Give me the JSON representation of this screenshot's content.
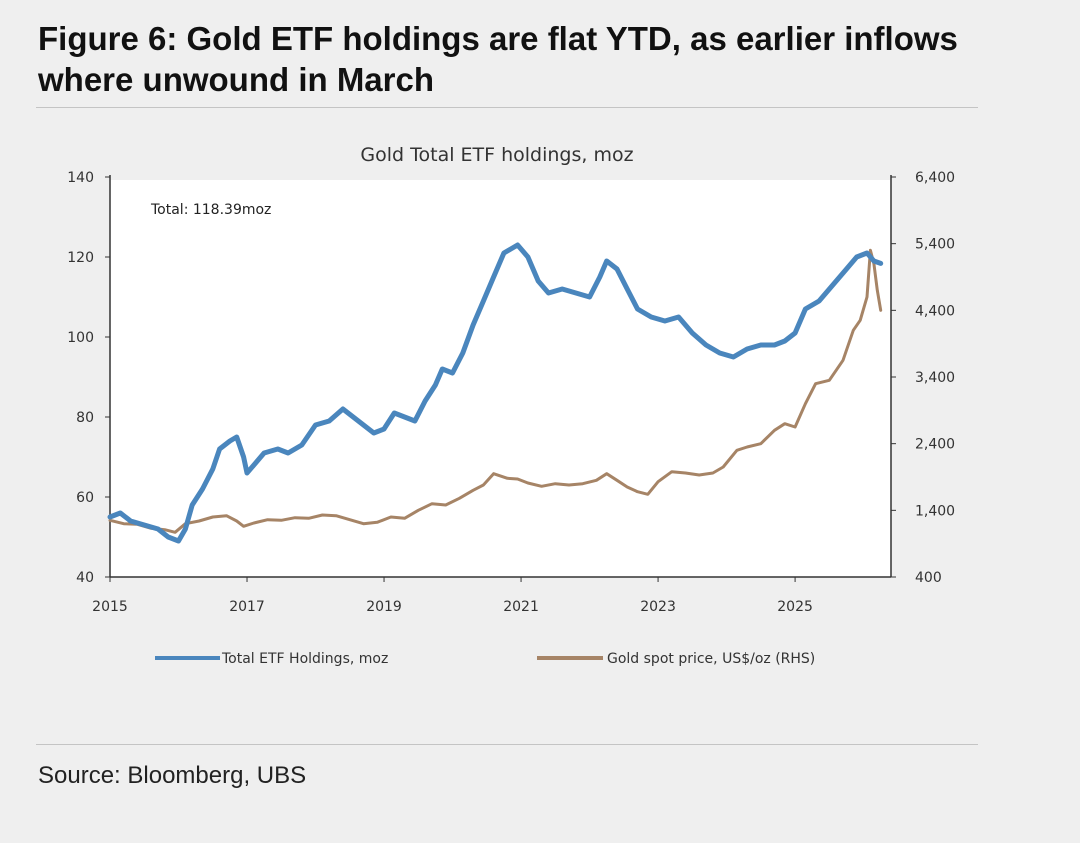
{
  "figure": {
    "title_line1": "Figure 6: Gold ETF holdings are flat YTD, as earlier inflows",
    "title_line2": "where unwound in March",
    "source": "Source: Bloomberg, UBS"
  },
  "colors": {
    "etf": "#4a86bd",
    "gold": "#a68466",
    "axis": "#333333"
  },
  "chart_data": {
    "type": "line",
    "title": "Gold Total ETF holdings, moz",
    "annotation": "Total: 118.39moz",
    "x_ticks": [
      "2015",
      "2017",
      "2019",
      "2021",
      "2023",
      "2025"
    ],
    "x_tick_values": [
      2015,
      2017,
      2019,
      2021,
      2023,
      2025
    ],
    "xlim": [
      2015,
      2026.4
    ],
    "y_left": {
      "ticks": [
        "140",
        "120",
        "100",
        "80",
        "60",
        "40"
      ],
      "tick_values": [
        140,
        120,
        100,
        80,
        60,
        40
      ],
      "lim": [
        40,
        140
      ]
    },
    "y_right": {
      "ticks": [
        "6,400",
        "5,400",
        "4,400",
        "3,400",
        "2,400",
        "1,400",
        "400"
      ],
      "tick_values": [
        6400,
        5400,
        4400,
        3400,
        2400,
        1400,
        400
      ],
      "lim": [
        400,
        6400
      ],
      "label": "RHS"
    },
    "legend_position": "bottom",
    "series": [
      {
        "name": "Total ETF Holdings, moz",
        "axis": "left",
        "points": [
          [
            2015.0,
            55
          ],
          [
            2015.15,
            56
          ],
          [
            2015.3,
            54
          ],
          [
            2015.5,
            53
          ],
          [
            2015.7,
            52
          ],
          [
            2015.85,
            50
          ],
          [
            2016.0,
            49
          ],
          [
            2016.1,
            52
          ],
          [
            2016.2,
            58
          ],
          [
            2016.35,
            62
          ],
          [
            2016.5,
            67
          ],
          [
            2016.6,
            72
          ],
          [
            2016.75,
            74
          ],
          [
            2016.85,
            75
          ],
          [
            2016.95,
            70
          ],
          [
            2017.0,
            66
          ],
          [
            2017.1,
            68
          ],
          [
            2017.25,
            71
          ],
          [
            2017.45,
            72
          ],
          [
            2017.6,
            71
          ],
          [
            2017.8,
            73
          ],
          [
            2018.0,
            78
          ],
          [
            2018.2,
            79
          ],
          [
            2018.4,
            82
          ],
          [
            2018.55,
            80
          ],
          [
            2018.7,
            78
          ],
          [
            2018.85,
            76
          ],
          [
            2019.0,
            77
          ],
          [
            2019.15,
            81
          ],
          [
            2019.3,
            80
          ],
          [
            2019.45,
            79
          ],
          [
            2019.6,
            84
          ],
          [
            2019.75,
            88
          ],
          [
            2019.85,
            92
          ],
          [
            2020.0,
            91
          ],
          [
            2020.15,
            96
          ],
          [
            2020.3,
            103
          ],
          [
            2020.45,
            109
          ],
          [
            2020.6,
            115
          ],
          [
            2020.75,
            121
          ],
          [
            2020.85,
            122
          ],
          [
            2020.95,
            123
          ],
          [
            2021.1,
            120
          ],
          [
            2021.25,
            114
          ],
          [
            2021.4,
            111
          ],
          [
            2021.6,
            112
          ],
          [
            2021.8,
            111
          ],
          [
            2022.0,
            110
          ],
          [
            2022.15,
            115
          ],
          [
            2022.25,
            119
          ],
          [
            2022.4,
            117
          ],
          [
            2022.55,
            112
          ],
          [
            2022.7,
            107
          ],
          [
            2022.9,
            105
          ],
          [
            2023.1,
            104
          ],
          [
            2023.3,
            105
          ],
          [
            2023.5,
            101
          ],
          [
            2023.7,
            98
          ],
          [
            2023.9,
            96
          ],
          [
            2024.1,
            95
          ],
          [
            2024.3,
            97
          ],
          [
            2024.5,
            98
          ],
          [
            2024.7,
            98
          ],
          [
            2024.85,
            99
          ],
          [
            2025.0,
            101
          ],
          [
            2025.15,
            107
          ],
          [
            2025.35,
            109
          ],
          [
            2025.55,
            113
          ],
          [
            2025.75,
            117
          ],
          [
            2025.9,
            120
          ],
          [
            2026.05,
            121
          ],
          [
            2026.15,
            119
          ],
          [
            2026.25,
            118.4
          ]
        ]
      },
      {
        "name": "Gold spot price, US$/oz (RHS)",
        "axis": "right",
        "points": [
          [
            2015.0,
            1250
          ],
          [
            2015.2,
            1200
          ],
          [
            2015.4,
            1190
          ],
          [
            2015.6,
            1130
          ],
          [
            2015.8,
            1110
          ],
          [
            2015.95,
            1070
          ],
          [
            2016.1,
            1200
          ],
          [
            2016.3,
            1240
          ],
          [
            2016.5,
            1300
          ],
          [
            2016.7,
            1320
          ],
          [
            2016.85,
            1240
          ],
          [
            2016.95,
            1160
          ],
          [
            2017.1,
            1210
          ],
          [
            2017.3,
            1260
          ],
          [
            2017.5,
            1250
          ],
          [
            2017.7,
            1290
          ],
          [
            2017.9,
            1280
          ],
          [
            2018.1,
            1330
          ],
          [
            2018.3,
            1320
          ],
          [
            2018.5,
            1260
          ],
          [
            2018.7,
            1200
          ],
          [
            2018.9,
            1220
          ],
          [
            2019.1,
            1300
          ],
          [
            2019.3,
            1280
          ],
          [
            2019.5,
            1400
          ],
          [
            2019.7,
            1500
          ],
          [
            2019.9,
            1480
          ],
          [
            2020.1,
            1580
          ],
          [
            2020.3,
            1700
          ],
          [
            2020.45,
            1780
          ],
          [
            2020.6,
            1950
          ],
          [
            2020.8,
            1880
          ],
          [
            2020.95,
            1870
          ],
          [
            2021.1,
            1810
          ],
          [
            2021.3,
            1760
          ],
          [
            2021.5,
            1800
          ],
          [
            2021.7,
            1780
          ],
          [
            2021.9,
            1800
          ],
          [
            2022.1,
            1850
          ],
          [
            2022.25,
            1950
          ],
          [
            2022.4,
            1850
          ],
          [
            2022.55,
            1750
          ],
          [
            2022.7,
            1680
          ],
          [
            2022.85,
            1640
          ],
          [
            2023.0,
            1830
          ],
          [
            2023.2,
            1980
          ],
          [
            2023.4,
            1960
          ],
          [
            2023.6,
            1930
          ],
          [
            2023.8,
            1960
          ],
          [
            2023.95,
            2050
          ],
          [
            2024.15,
            2300
          ],
          [
            2024.3,
            2350
          ],
          [
            2024.5,
            2400
          ],
          [
            2024.7,
            2600
          ],
          [
            2024.85,
            2700
          ],
          [
            2025.0,
            2650
          ],
          [
            2025.15,
            3000
          ],
          [
            2025.3,
            3300
          ],
          [
            2025.5,
            3350
          ],
          [
            2025.7,
            3650
          ],
          [
            2025.85,
            4100
          ],
          [
            2025.95,
            4250
          ],
          [
            2026.05,
            4600
          ],
          [
            2026.1,
            5300
          ],
          [
            2026.15,
            5100
          ],
          [
            2026.2,
            4700
          ],
          [
            2026.25,
            4400
          ]
        ]
      }
    ]
  }
}
